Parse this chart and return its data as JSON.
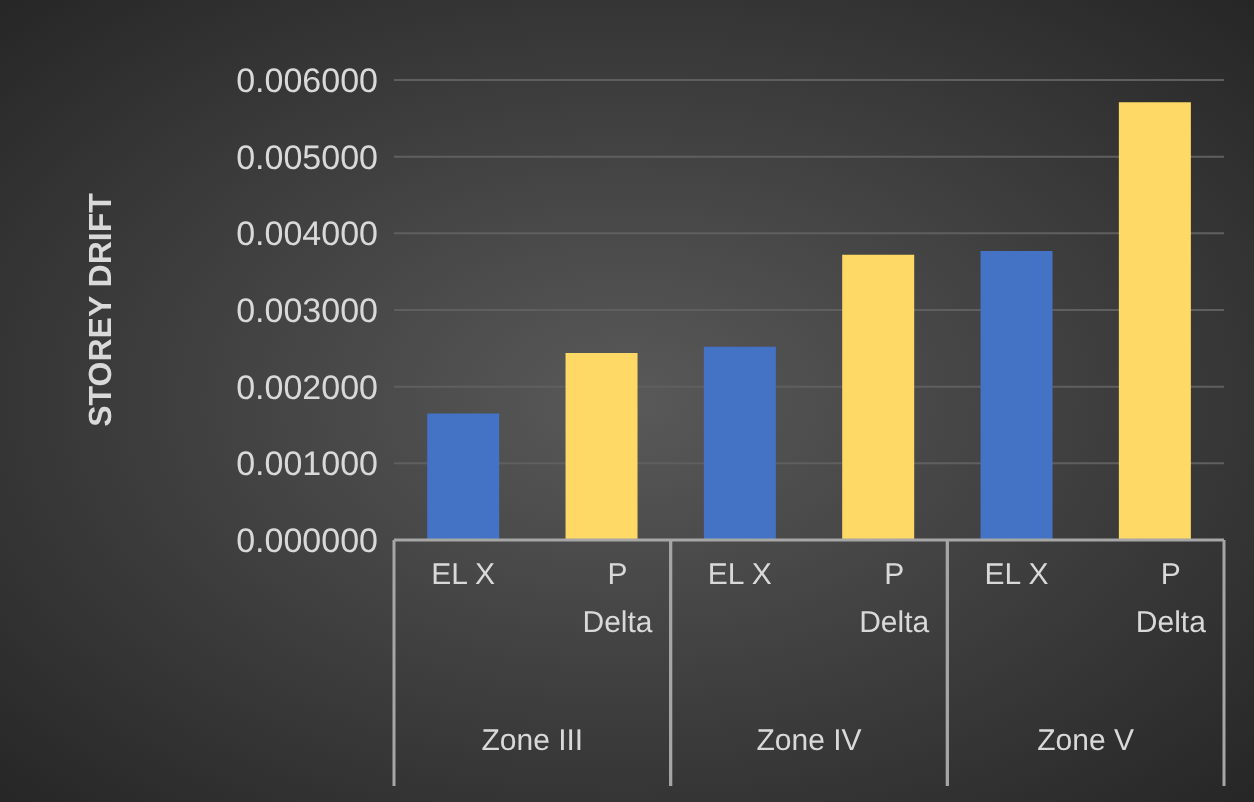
{
  "chart_data": {
    "type": "bar",
    "ylabel": "STOREY DRIFT",
    "categories": [
      "EL X",
      "P Delta",
      "EL X",
      "P Delta",
      "EL X",
      "P Delta"
    ],
    "values": [
      0.00165,
      0.00244,
      0.00252,
      0.00372,
      0.00377,
      0.00571
    ],
    "colors": [
      "#4472c4",
      "#ffd966",
      "#4472c4",
      "#ffd966",
      "#4472c4",
      "#ffd966"
    ],
    "ylim": [
      0,
      0.006
    ],
    "yticks": [
      {
        "value": 0,
        "label": "0.000000"
      },
      {
        "value": 0.001,
        "label": "0.001000"
      },
      {
        "value": 0.002,
        "label": "0.002000"
      },
      {
        "value": 0.003,
        "label": "0.003000"
      },
      {
        "value": 0.004,
        "label": "0.004000"
      },
      {
        "value": 0.005,
        "label": "0.005000"
      },
      {
        "value": 0.006,
        "label": "0.006000"
      }
    ],
    "grid": "y",
    "annotations": [
      "Zone III",
      "Zone IV",
      "Zone V"
    ]
  }
}
